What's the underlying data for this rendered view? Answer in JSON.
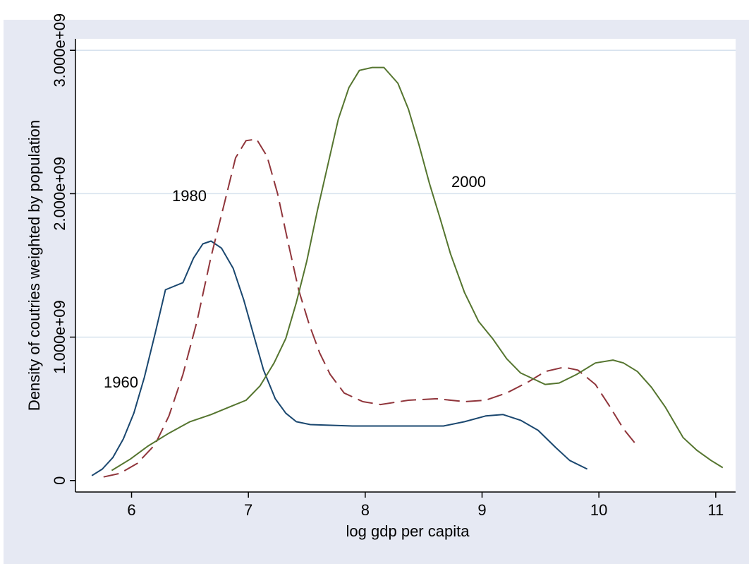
{
  "chart_data": {
    "type": "line",
    "xlabel": "log gdp per capita",
    "ylabel": "Density of coutries weighted by population",
    "xlim": [
      5.52,
      11.17
    ],
    "xticks": [
      6,
      7,
      8,
      9,
      10,
      11
    ],
    "ylim": [
      -80000000,
      3080000000
    ],
    "yticks": [
      0,
      {
        "value": 1000000000,
        "label": "1.000e+09"
      },
      {
        "value": 2000000000,
        "label": "2.000e+09"
      },
      {
        "value": 3000000000,
        "label": "3.000e+09"
      }
    ],
    "grid": true,
    "series": [
      {
        "name": "1960",
        "color": "#1a476f",
        "line_style": "solid",
        "x": [
          5.66,
          5.75,
          5.84,
          5.93,
          6.02,
          6.11,
          6.2,
          6.29,
          6.44,
          6.53,
          6.61,
          6.68,
          6.77,
          6.87,
          6.96,
          7.05,
          7.13,
          7.23,
          7.32,
          7.41,
          7.53,
          7.89,
          8.49,
          8.67,
          8.85,
          9.03,
          9.18,
          9.33,
          9.48,
          9.63,
          9.75,
          9.9
        ],
        "values": [
          34000000,
          80000000,
          160000000,
          290000000,
          470000000,
          720000000,
          1020000000,
          1330000000,
          1380000000,
          1550000000,
          1650000000,
          1670000000,
          1620000000,
          1480000000,
          1260000000,
          1000000000,
          770000000,
          570000000,
          470000000,
          410000000,
          390000000,
          380000000,
          380000000,
          380000000,
          410000000,
          450000000,
          460000000,
          420000000,
          350000000,
          230000000,
          140000000,
          80000000
        ]
      },
      {
        "name": "1980",
        "color": "#90353b",
        "line_style": "dash",
        "x": [
          5.76,
          5.9,
          6.05,
          6.2,
          6.32,
          6.44,
          6.56,
          6.68,
          6.8,
          6.89,
          6.98,
          7.07,
          7.16,
          7.25,
          7.34,
          7.43,
          7.52,
          7.61,
          7.7,
          7.82,
          7.98,
          8.13,
          8.37,
          8.61,
          8.85,
          9.03,
          9.21,
          9.4,
          9.54,
          9.7,
          9.82,
          9.97,
          10.09,
          10.21,
          10.33
        ],
        "values": [
          25000000,
          50000000,
          120000000,
          250000000,
          450000000,
          740000000,
          1110000000,
          1560000000,
          1950000000,
          2250000000,
          2370000000,
          2380000000,
          2260000000,
          2000000000,
          1660000000,
          1330000000,
          1090000000,
          890000000,
          740000000,
          610000000,
          550000000,
          530000000,
          560000000,
          570000000,
          550000000,
          560000000,
          610000000,
          690000000,
          760000000,
          790000000,
          770000000,
          670000000,
          520000000,
          360000000,
          240000000
        ]
      },
      {
        "name": "2000",
        "color": "#55752f",
        "line_style": "solid",
        "x": [
          5.83,
          5.99,
          6.14,
          6.32,
          6.5,
          6.68,
          6.86,
          6.98,
          7.1,
          7.22,
          7.32,
          7.41,
          7.5,
          7.59,
          7.68,
          7.77,
          7.86,
          7.95,
          8.06,
          8.16,
          8.28,
          8.37,
          8.46,
          8.55,
          8.64,
          8.73,
          8.85,
          8.97,
          9.09,
          9.21,
          9.33,
          9.54,
          9.66,
          9.81,
          9.97,
          10.12,
          10.21,
          10.33,
          10.45,
          10.57,
          10.72,
          10.84,
          10.96,
          11.06
        ],
        "values": [
          70000000,
          150000000,
          240000000,
          330000000,
          410000000,
          460000000,
          520000000,
          560000000,
          660000000,
          820000000,
          990000000,
          1240000000,
          1530000000,
          1880000000,
          2200000000,
          2520000000,
          2740000000,
          2860000000,
          2880000000,
          2880000000,
          2770000000,
          2590000000,
          2340000000,
          2070000000,
          1830000000,
          1580000000,
          1310000000,
          1110000000,
          990000000,
          850000000,
          750000000,
          670000000,
          680000000,
          740000000,
          820000000,
          840000000,
          820000000,
          760000000,
          650000000,
          510000000,
          300000000,
          210000000,
          140000000,
          90000000
        ]
      }
    ]
  }
}
